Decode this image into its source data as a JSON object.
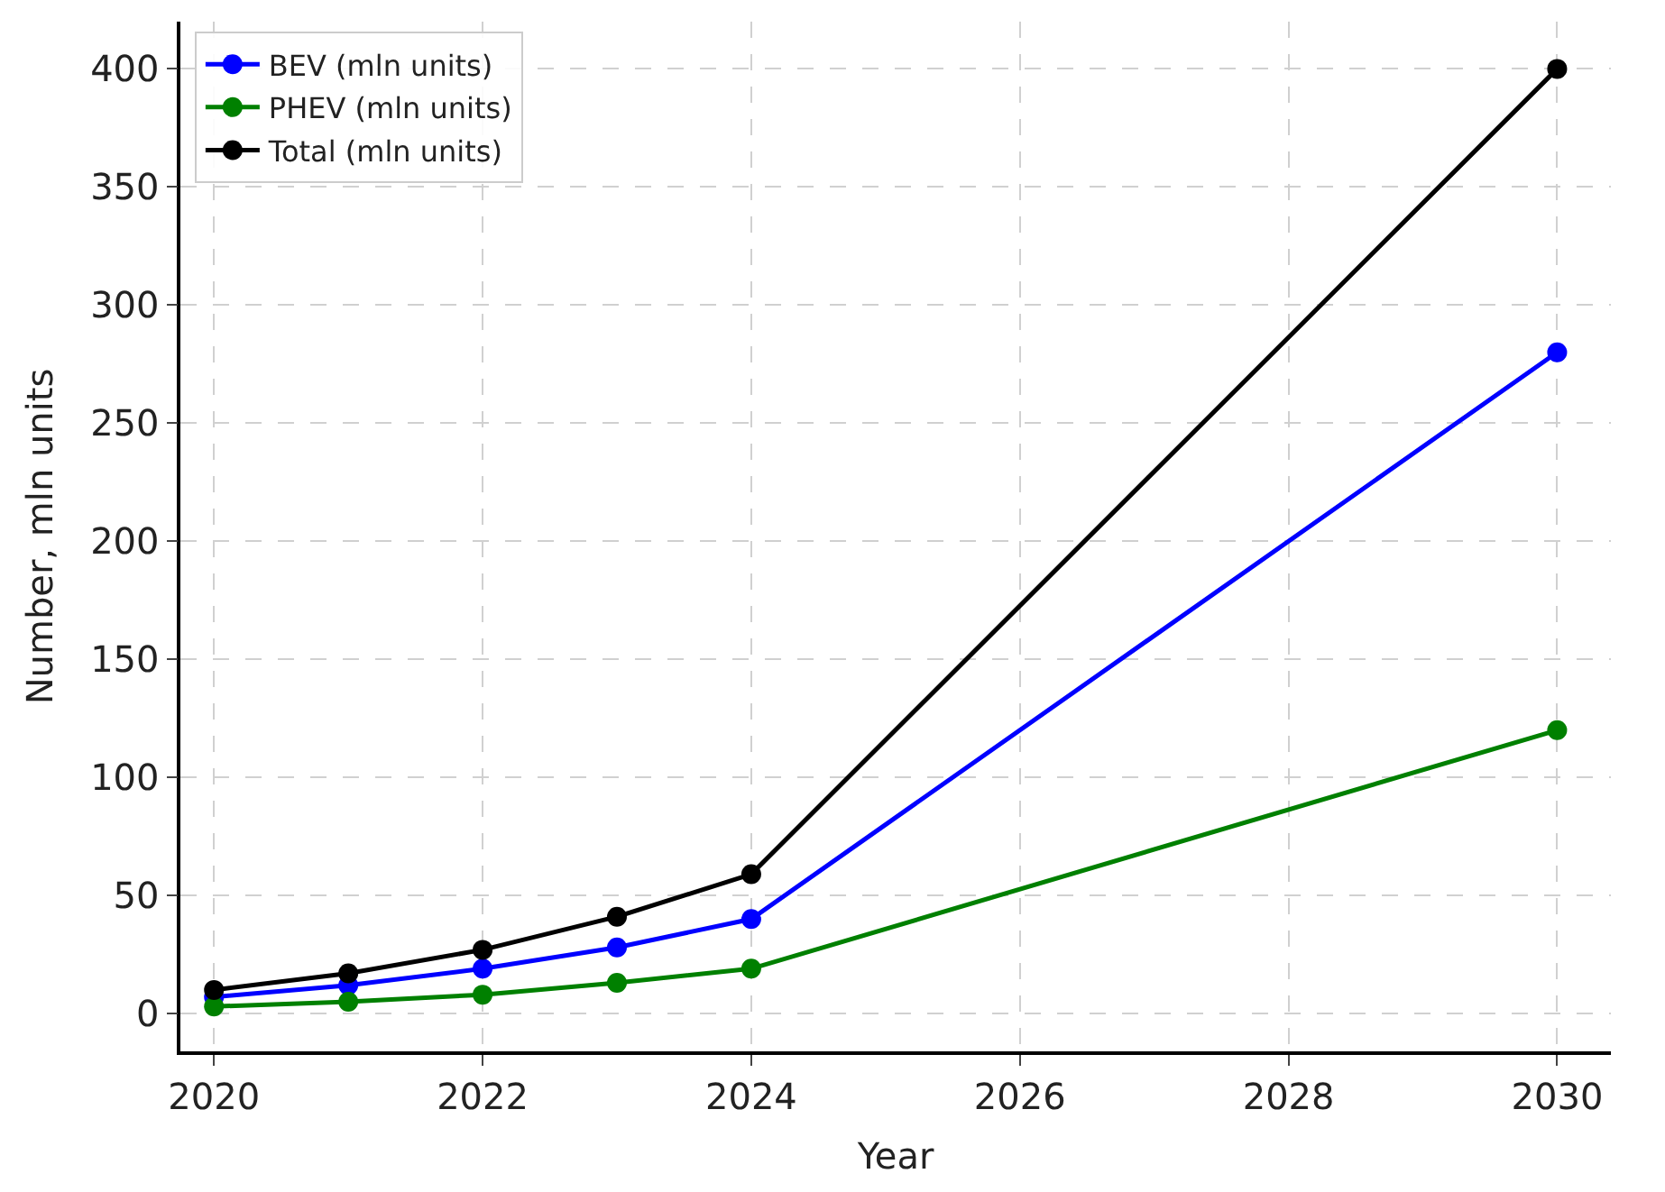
{
  "chart_data": {
    "type": "line",
    "xlabel": "Year",
    "ylabel": "Number, mln units",
    "x": [
      2020,
      2021,
      2022,
      2023,
      2024,
      2030
    ],
    "series": [
      {
        "name": "BEV (mln units)",
        "color": "#0000ff",
        "values": [
          7,
          12,
          19,
          28,
          40,
          280
        ]
      },
      {
        "name": "PHEV (mln units)",
        "color": "#008000",
        "values": [
          3,
          5,
          8,
          13,
          19,
          120
        ]
      },
      {
        "name": "Total (mln units)",
        "color": "#000000",
        "values": [
          10,
          17,
          27,
          41,
          59,
          400
        ]
      }
    ],
    "xlim": [
      2019.75,
      2030.4
    ],
    "xticks": [
      2020,
      2022,
      2024,
      2026,
      2028,
      2030
    ],
    "ylim": [
      -16,
      420
    ],
    "yticks": [
      0,
      50,
      100,
      150,
      200,
      250,
      300,
      350,
      400
    ],
    "grid": true,
    "legend": "top left",
    "marker": "circle",
    "line_style": "solid"
  }
}
